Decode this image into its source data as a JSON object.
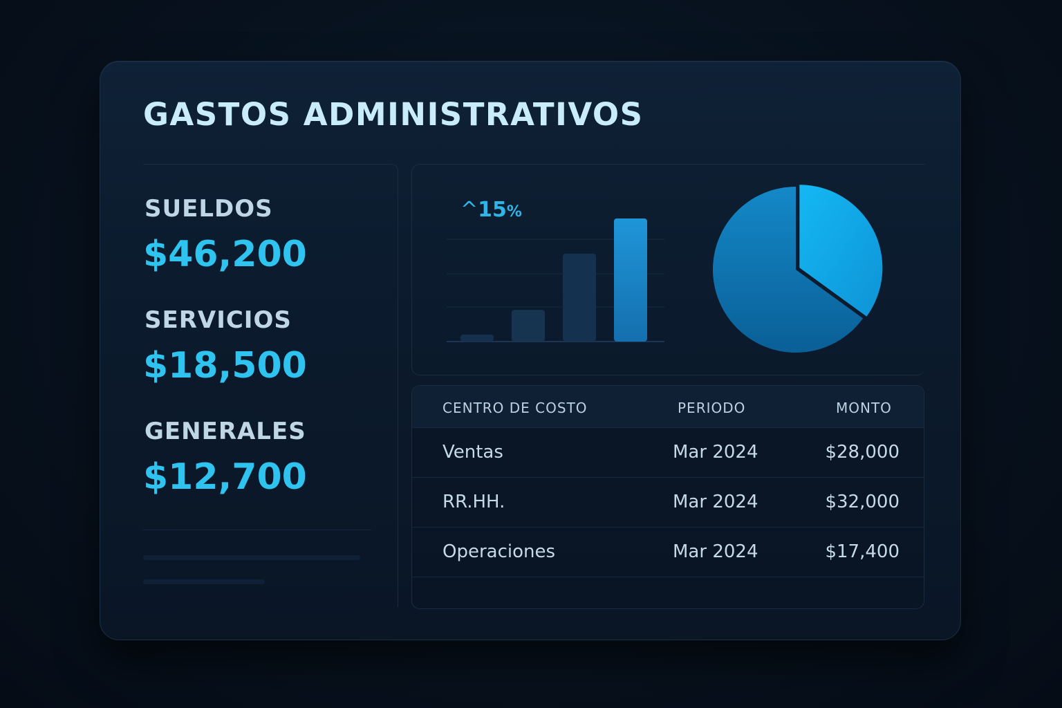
{
  "title": "GASTOS ADMINISTRATIVOS",
  "stats": [
    {
      "label": "SUELDOS",
      "value": "$46,200"
    },
    {
      "label": "SERVICIOS",
      "value": "$18,500"
    },
    {
      "label": "GENERALES",
      "value": "$12,700"
    }
  ],
  "trend": {
    "caret": "^",
    "value": "15",
    "unit": "%"
  },
  "chart_data": [
    {
      "type": "bar",
      "categories": [
        "",
        "",
        "",
        ""
      ],
      "values": [
        2,
        9,
        25,
        35
      ],
      "colors": [
        "#14304c",
        "#16344f",
        "#143150",
        "#1f8fd0"
      ]
    },
    {
      "type": "pie",
      "values": [
        35,
        65
      ],
      "colors": [
        "#12b0ee",
        "#0f7fbe"
      ]
    }
  ],
  "table": {
    "headers": [
      "CENTRO DE COSTO",
      "PERIODO",
      "MONTO"
    ],
    "rows": [
      [
        "Ventas",
        "Mar 2024",
        "$28,000"
      ],
      [
        "RR.HH.",
        "Mar 2024",
        "$32,000"
      ],
      [
        "Operaciones",
        "Mar 2024",
        "$17,400"
      ]
    ]
  },
  "colors": {
    "accent": "#2fc3f0",
    "background": "#07111d",
    "card": "#0f2136",
    "title": "#c9ecfa"
  }
}
